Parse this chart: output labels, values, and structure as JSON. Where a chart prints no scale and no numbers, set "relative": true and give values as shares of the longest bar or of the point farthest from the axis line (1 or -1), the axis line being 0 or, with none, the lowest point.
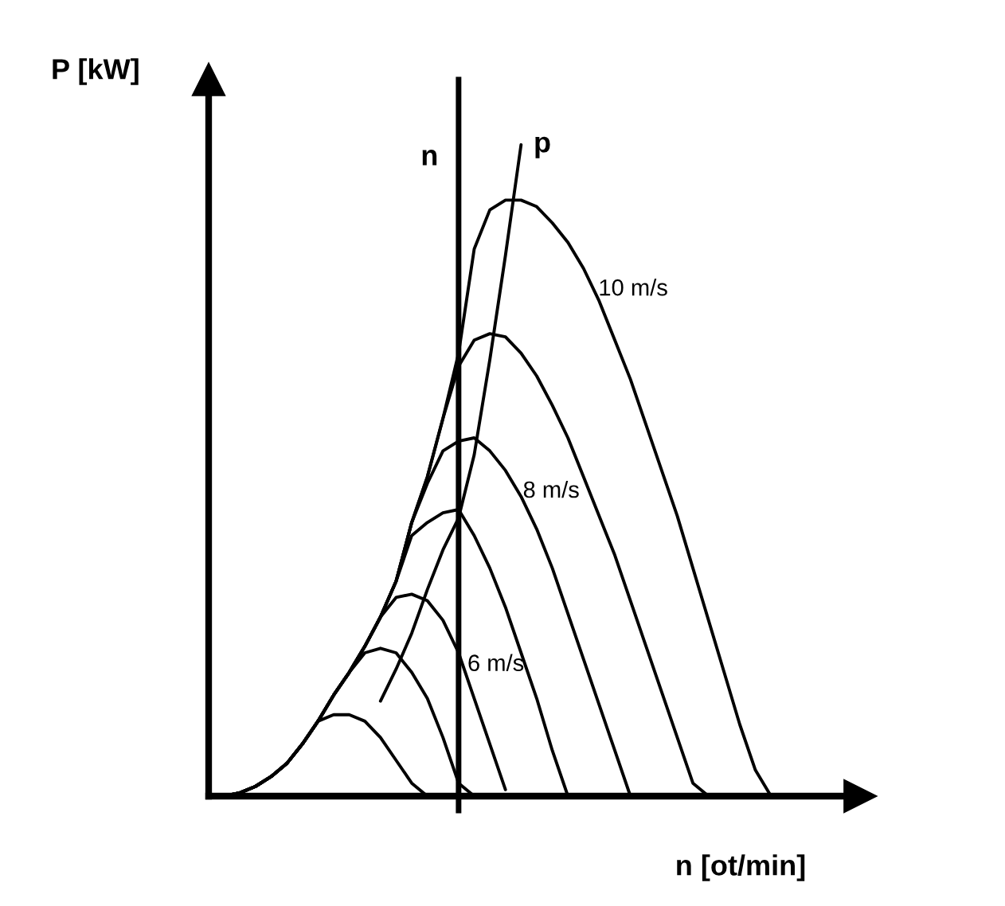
{
  "chart_data": {
    "type": "line",
    "relative": true,
    "xlabel": "n [ot/min]",
    "ylabel": "P [kW]",
    "annotations": [
      "n"
    ],
    "categories": [
      null,
      null,
      null,
      null,
      null,
      null,
      null,
      null,
      null,
      null,
      null,
      null,
      null,
      null,
      null,
      null,
      null,
      null,
      null,
      null,
      null,
      null,
      null,
      null,
      null,
      null,
      null,
      null,
      null,
      null,
      null,
      null,
      null,
      null,
      null,
      null,
      null,
      null,
      null,
      null,
      null,
      null
    ],
    "series": [
      {
        "color": "#000000",
        "values": [
          null,
          0,
          0.005,
          0.015,
          0.03,
          0.05,
          0.08,
          0.115,
          0.125,
          0.125,
          0.115,
          0.09,
          0.055,
          0.02,
          0,
          null,
          null,
          null,
          null,
          null,
          null,
          null,
          null,
          null,
          null,
          null,
          null,
          null,
          null,
          null,
          null,
          null,
          null,
          null,
          null,
          null,
          null,
          null,
          null,
          null,
          null,
          null
        ]
      },
      {
        "color": "#000000",
        "values": [
          null,
          0,
          0.005,
          0.015,
          0.03,
          0.05,
          0.08,
          0.115,
          0.155,
          0.19,
          0.22,
          0.227,
          0.22,
          0.19,
          0.15,
          0.09,
          0.02,
          0,
          null,
          null,
          null,
          null,
          null,
          null,
          null,
          null,
          null,
          null,
          null,
          null,
          null,
          null,
          null,
          null,
          null,
          null,
          null,
          null,
          null,
          null,
          null,
          null
        ]
      },
      {
        "name": "6 m/s",
        "color": "#000000",
        "values": [
          null,
          0,
          0.005,
          0.015,
          0.03,
          0.05,
          0.08,
          0.115,
          0.155,
          0.19,
          0.23,
          0.275,
          0.305,
          0.31,
          0.3,
          0.27,
          0.22,
          0.15,
          0.08,
          0.01,
          null,
          null,
          null,
          null,
          null,
          null,
          null,
          null,
          null,
          null,
          null,
          null,
          null,
          null,
          null,
          null,
          null,
          null,
          null,
          null,
          null,
          null
        ]
      },
      {
        "color": "#000000",
        "values": [
          null,
          0,
          0.005,
          0.015,
          0.03,
          0.05,
          0.08,
          0.115,
          0.155,
          0.19,
          0.23,
          0.275,
          0.33,
          0.4,
          0.42,
          0.435,
          0.44,
          0.4,
          0.35,
          0.29,
          0.22,
          0.15,
          0.07,
          0,
          null,
          null,
          null,
          null,
          null,
          null,
          null,
          null,
          null,
          null,
          null,
          null,
          null,
          null,
          null,
          null,
          null,
          null
        ]
      },
      {
        "name": "8 m/s",
        "color": "#000000",
        "values": [
          null,
          0,
          0.005,
          0.015,
          0.03,
          0.05,
          0.08,
          0.115,
          0.155,
          0.19,
          0.23,
          0.275,
          0.33,
          0.42,
          0.48,
          0.53,
          0.545,
          0.55,
          0.53,
          0.5,
          0.46,
          0.41,
          0.35,
          0.28,
          0.21,
          0.14,
          0.07,
          0,
          null,
          null,
          null,
          null,
          null,
          null,
          null,
          null,
          null,
          null,
          null,
          null,
          null,
          null
        ]
      },
      {
        "color": "#000000",
        "values": [
          null,
          0,
          0.005,
          0.015,
          0.03,
          0.05,
          0.08,
          0.115,
          0.155,
          0.19,
          0.23,
          0.275,
          0.33,
          0.42,
          0.49,
          0.58,
          0.66,
          0.7,
          0.71,
          0.705,
          0.68,
          0.645,
          0.6,
          0.55,
          0.49,
          0.43,
          0.37,
          0.3,
          0.23,
          0.16,
          0.09,
          0.02,
          0,
          null,
          null,
          null,
          null,
          null,
          null,
          null,
          null,
          null
        ]
      },
      {
        "name": "10 m/s",
        "color": "#000000",
        "values": [
          null,
          0,
          0.005,
          0.015,
          0.03,
          0.05,
          0.08,
          0.115,
          0.155,
          0.19,
          0.23,
          0.275,
          0.33,
          0.42,
          0.49,
          0.58,
          0.68,
          0.84,
          0.9,
          0.915,
          0.915,
          0.905,
          0.88,
          0.85,
          0.81,
          0.76,
          0.7,
          0.64,
          0.57,
          0.5,
          0.43,
          0.35,
          0.27,
          0.19,
          0.11,
          0.04,
          0,
          null,
          null,
          null,
          null,
          null
        ]
      },
      {
        "name": "p",
        "color": "#000000",
        "values": [
          null,
          null,
          null,
          null,
          null,
          null,
          null,
          null,
          null,
          null,
          null,
          0.146,
          0.195,
          0.25,
          0.317,
          0.378,
          0.427,
          0.524,
          0.67,
          0.83,
          1,
          null,
          null,
          null,
          null,
          null,
          null,
          null,
          null,
          null,
          null,
          null,
          null,
          null,
          null,
          null,
          null,
          null,
          null,
          null,
          null,
          null
        ]
      }
    ]
  }
}
